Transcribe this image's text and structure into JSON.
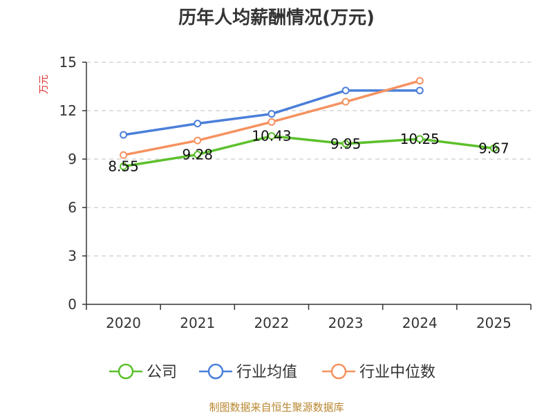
{
  "chart_data": {
    "type": "line",
    "title": "历年人均薪酬情况(万元)",
    "xlabel": "",
    "ylabel": "万元",
    "categories": [
      "2020",
      "2021",
      "2022",
      "2023",
      "2024",
      "2025"
    ],
    "ylim": [
      0,
      15
    ],
    "yticks": [
      0,
      3,
      6,
      9,
      12,
      15
    ],
    "grid": true,
    "legend_position": "bottom",
    "series": [
      {
        "name": "公司",
        "color": "#5cc02c",
        "values": [
          8.55,
          9.28,
          10.43,
          9.95,
          10.25,
          9.67
        ],
        "labels": [
          "8.55",
          "9.28",
          "10.43",
          "9.95",
          "10.25",
          "9.67"
        ]
      },
      {
        "name": "行业均值",
        "color": "#4a7fd9",
        "values": [
          10.5,
          11.2,
          11.8,
          13.25,
          13.25,
          null
        ]
      },
      {
        "name": "行业中位数",
        "color": "#f59260",
        "values": [
          9.25,
          10.15,
          11.3,
          12.55,
          13.85,
          null
        ]
      }
    ]
  },
  "source_note": "制图数据来自恒生聚源数据库"
}
